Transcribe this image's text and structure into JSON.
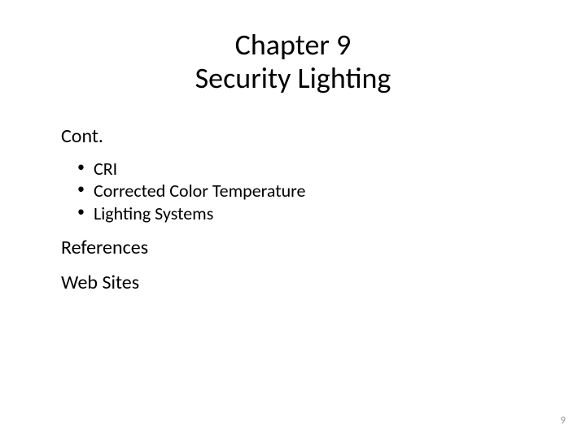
{
  "slide": {
    "title_line1": "Chapter 9",
    "title_line2": "Security Lighting",
    "cont_label": "Cont.",
    "bullets": {
      "item0": "CRI",
      "item1": "Corrected Color Temperature",
      "item2": "Lighting Systems"
    },
    "references_label": "References",
    "websites_label": "Web Sites",
    "page_number": "9",
    "colors": {
      "background": "#ffffff",
      "text": "#000000",
      "page_number": "#9a9a9a"
    },
    "typography": {
      "title_fontsize": 36,
      "heading_fontsize": 24,
      "bullet_fontsize": 22,
      "pagenum_fontsize": 13,
      "font_family": "Calibri"
    }
  }
}
